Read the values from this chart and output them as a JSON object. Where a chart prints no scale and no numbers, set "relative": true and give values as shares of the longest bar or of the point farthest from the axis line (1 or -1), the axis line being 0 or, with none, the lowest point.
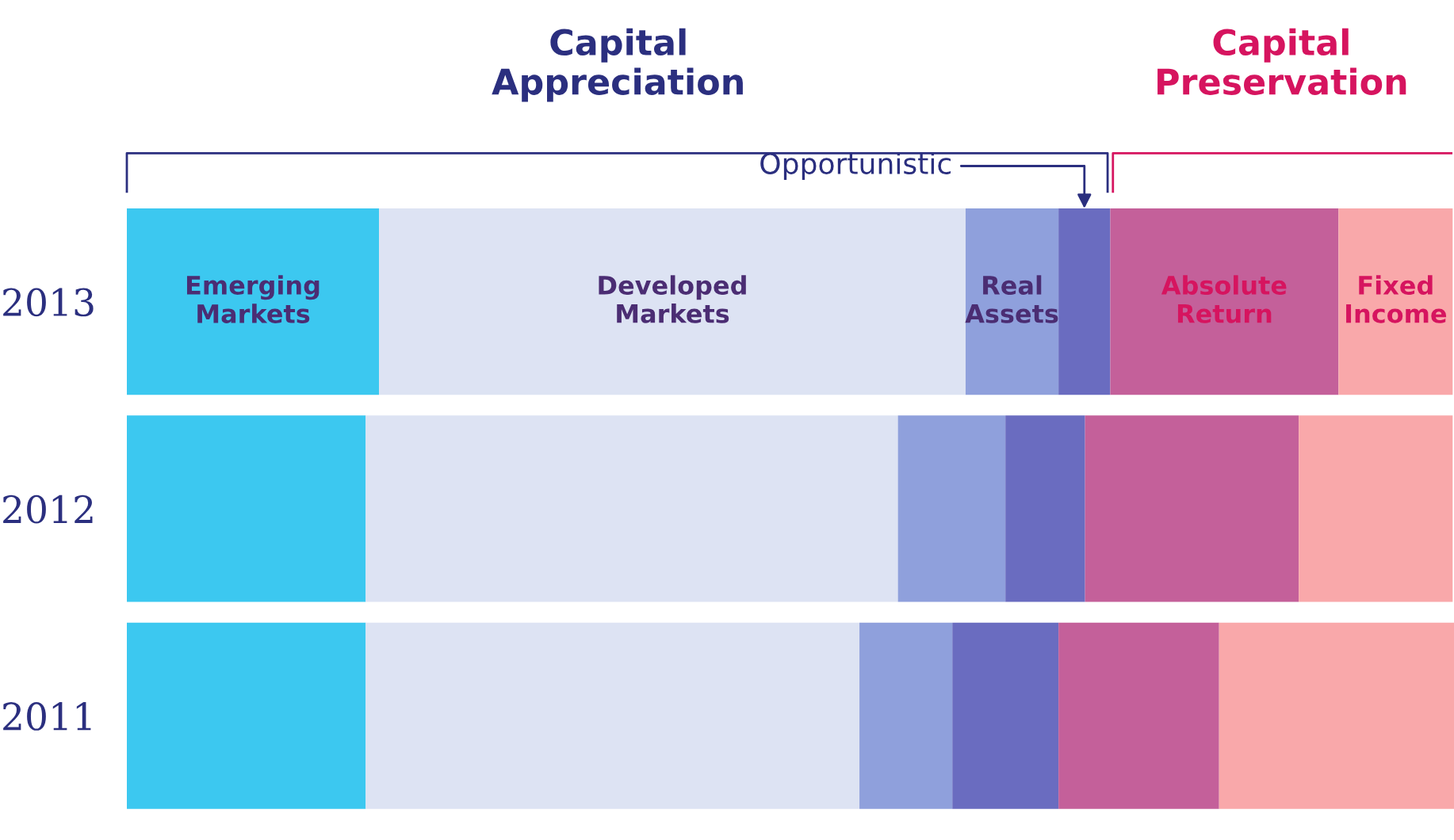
{
  "chart_data": {
    "type": "bar",
    "orientation": "horizontal",
    "stacked": true,
    "relative": true,
    "categories": [
      "2013",
      "2012",
      "2011"
    ],
    "series": [
      {
        "name": "Emerging Markets",
        "color": "#3cc8f0",
        "values": [
          0.19,
          0.18,
          0.18
        ]
      },
      {
        "name": "Developed Markets",
        "color": "#dde3f3",
        "values": [
          0.442,
          0.401,
          0.372
        ]
      },
      {
        "name": "Real Assets",
        "color": "#8fa0dc",
        "values": [
          0.07,
          0.081,
          0.07
        ]
      },
      {
        "name": "Opportunistic",
        "color": "#6a6cc0",
        "values": [
          0.039,
          0.06,
          0.08
        ]
      },
      {
        "name": "Absolute Return",
        "color": "#c4609a",
        "values": [
          0.172,
          0.161,
          0.121
        ]
      },
      {
        "name": "Fixed Income",
        "color": "#f9a8aa",
        "values": [
          0.086,
          0.116,
          0.177
        ]
      }
    ],
    "annotations": [
      "Capital Appreciation",
      "Capital Preservation"
    ],
    "legend": false,
    "grid": false
  }
}
